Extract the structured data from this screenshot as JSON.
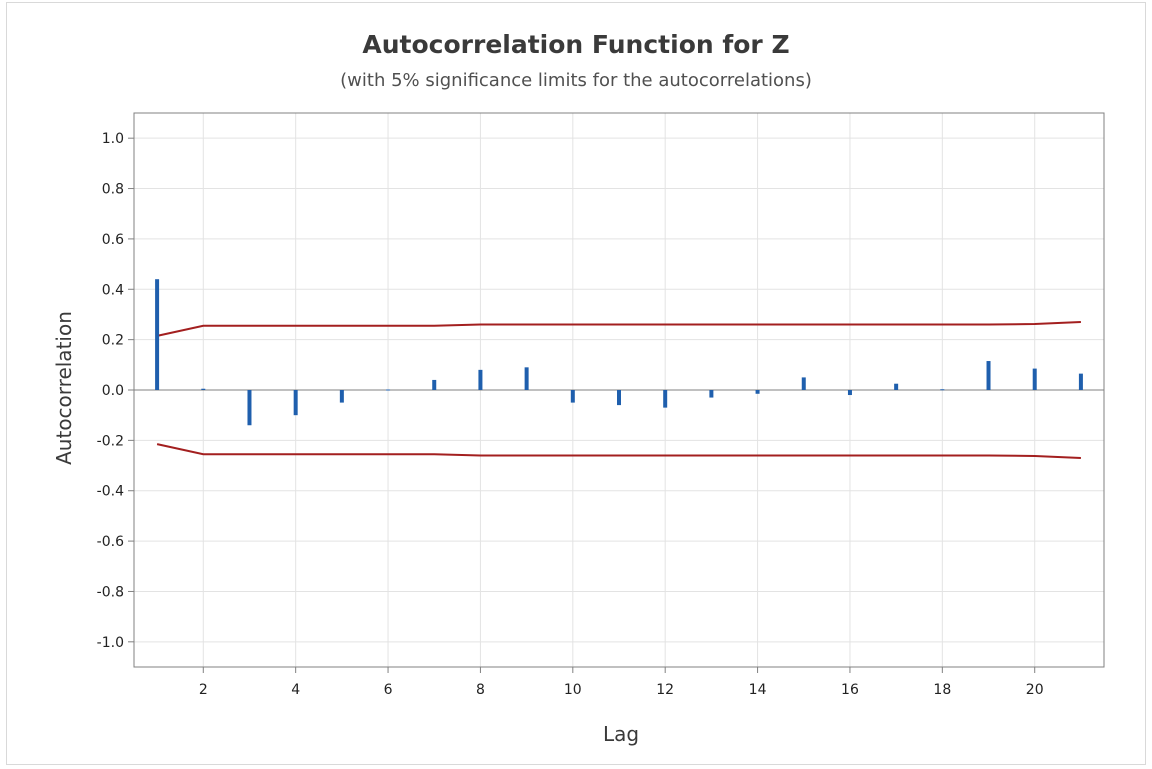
{
  "chart_data": {
    "type": "bar",
    "title": "Autocorrelation Function for Z",
    "subtitle": "(with 5% significance limits for the autocorrelations)",
    "xlabel": "Lag",
    "ylabel": "Autocorrelation",
    "xlim": [
      0.5,
      21.5
    ],
    "ylim": [
      -1.1,
      1.1
    ],
    "xticks": [
      2,
      4,
      6,
      8,
      10,
      12,
      14,
      16,
      18,
      20
    ],
    "xtick_labels": [
      "2",
      "4",
      "6",
      "8",
      "10",
      "12",
      "14",
      "16",
      "18",
      "20"
    ],
    "yticks": [
      -1.0,
      -0.8,
      -0.6,
      -0.4,
      -0.2,
      0.0,
      0.2,
      0.4,
      0.6,
      0.8,
      1.0
    ],
    "ytick_labels": [
      "-1.0",
      "-0.8",
      "-0.6",
      "-0.4",
      "-0.2",
      "0.0",
      "0.2",
      "0.4",
      "0.6",
      "0.8",
      "1.0"
    ],
    "grid": true,
    "lags": [
      1,
      2,
      3,
      4,
      5,
      6,
      7,
      8,
      9,
      10,
      11,
      12,
      13,
      14,
      15,
      16,
      17,
      18,
      19,
      20,
      21
    ],
    "acf": [
      0.44,
      0.005,
      -0.14,
      -0.1,
      -0.05,
      0.002,
      0.04,
      0.08,
      0.09,
      -0.05,
      -0.06,
      -0.07,
      -0.03,
      -0.015,
      0.05,
      -0.02,
      0.025,
      0.003,
      0.115,
      0.085,
      0.065
    ],
    "significance_limits": {
      "upper": [
        0.215,
        0.255,
        0.255,
        0.255,
        0.255,
        0.255,
        0.255,
        0.26,
        0.26,
        0.26,
        0.26,
        0.26,
        0.26,
        0.26,
        0.26,
        0.26,
        0.26,
        0.26,
        0.26,
        0.262,
        0.27
      ],
      "lower": [
        -0.215,
        -0.255,
        -0.255,
        -0.255,
        -0.255,
        -0.255,
        -0.255,
        -0.26,
        -0.26,
        -0.26,
        -0.26,
        -0.26,
        -0.26,
        -0.26,
        -0.26,
        -0.26,
        -0.26,
        -0.26,
        -0.26,
        -0.262,
        -0.27
      ]
    },
    "colors": {
      "bars": "#1f5fad",
      "limits": "#a31f1f",
      "grid": "#e3e3e3",
      "axis": "#808080",
      "zero_line": "#808080"
    }
  }
}
